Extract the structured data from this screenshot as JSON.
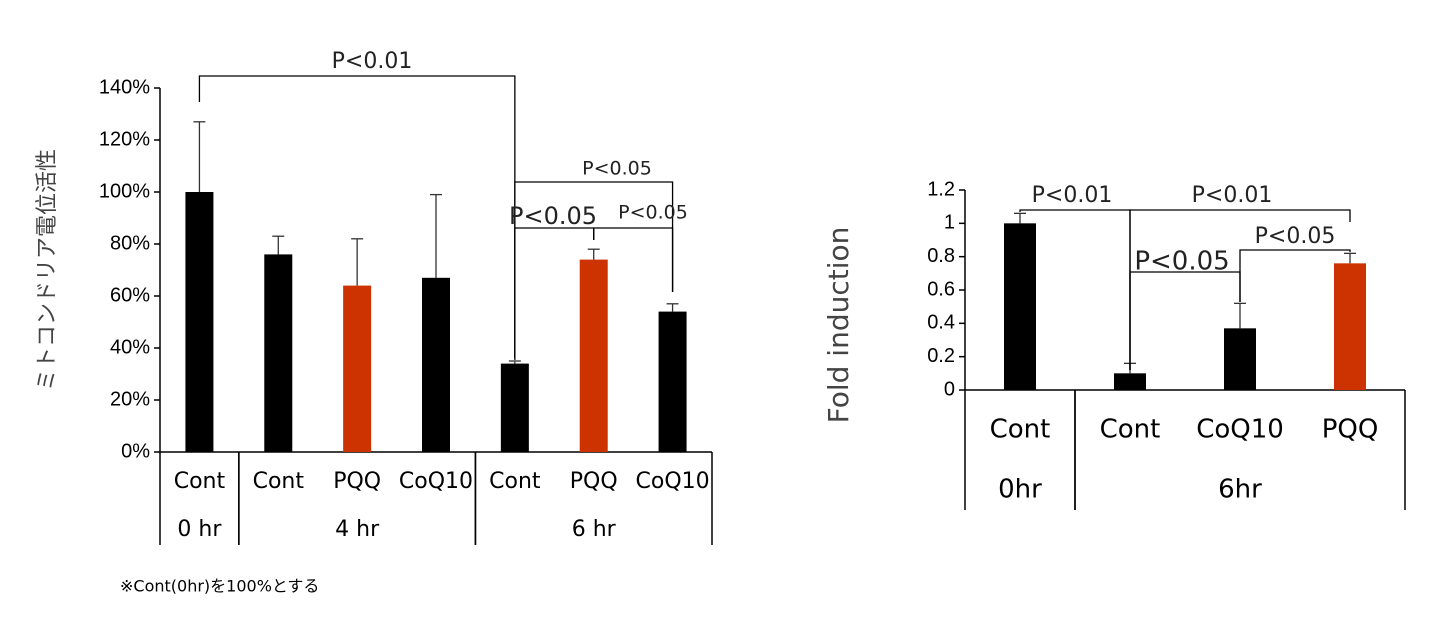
{
  "chart_data": [
    {
      "type": "bar",
      "y_label": "ミトコンドリア電位活性",
      "groups": [
        {
          "label": "0 hr",
          "categories": [
            "Cont"
          ]
        },
        {
          "label": "4 hr",
          "categories": [
            "Cont",
            "PQQ",
            "CoQ10"
          ]
        },
        {
          "label": "6 hr",
          "categories": [
            "Cont",
            "PQQ",
            "CoQ10"
          ]
        }
      ],
      "values": [
        100,
        76,
        64,
        67,
        34,
        74,
        54
      ],
      "errors": [
        27,
        7,
        18,
        32,
        1,
        4,
        3
      ],
      "colors": [
        "#000000",
        "#000000",
        "#cc3300",
        "#000000",
        "#000000",
        "#cc3300",
        "#000000"
      ],
      "ylim": [
        0,
        140
      ],
      "yticks": [
        {
          "value": 0,
          "label": "0%"
        },
        {
          "value": 20,
          "label": "20%"
        },
        {
          "value": 40,
          "label": "40%"
        },
        {
          "value": 60,
          "label": "60%"
        },
        {
          "value": 80,
          "label": "80%"
        },
        {
          "value": 100,
          "label": "100%"
        },
        {
          "value": 120,
          "label": "120%"
        },
        {
          "value": 140,
          "label": "140%"
        }
      ],
      "annotations": [
        "P<0.01",
        "P<0.05",
        "P<0.05",
        "P<0.05"
      ],
      "note": "※Cont(0hr)を100%とする"
    },
    {
      "type": "bar",
      "y_label": "Fold induction",
      "groups": [
        {
          "label": "0hr",
          "categories": [
            "Cont"
          ]
        },
        {
          "label": "6hr",
          "categories": [
            "Cont",
            "CoQ10",
            "PQQ"
          ]
        }
      ],
      "values": [
        1.0,
        0.1,
        0.37,
        0.76
      ],
      "errors": [
        0.06,
        0.06,
        0.15,
        0.06
      ],
      "colors": [
        "#000000",
        "#000000",
        "#000000",
        "#cc3300"
      ],
      "ylim": [
        0,
        1.2
      ],
      "yticks": [
        0,
        0.2,
        0.4,
        0.6,
        0.8,
        1,
        1.2
      ],
      "annotations": [
        "P<0.01",
        "P<0.01",
        "P<0.05",
        "P<0.05"
      ]
    }
  ]
}
